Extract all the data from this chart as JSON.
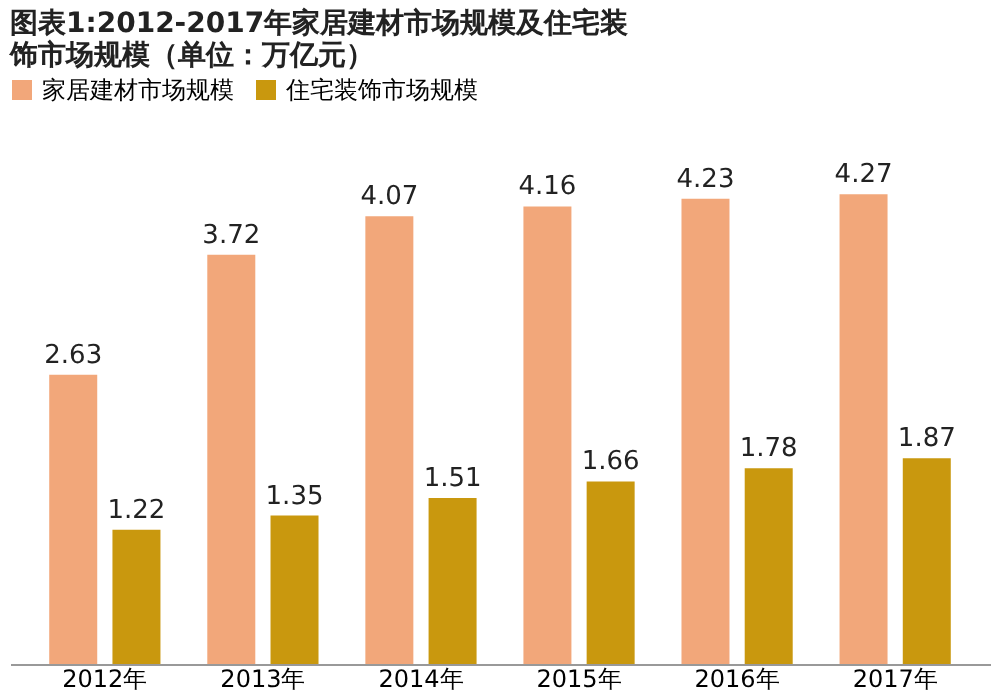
{
  "chart_data": {
    "type": "bar",
    "title": "图表1:2012-2017年家居建材市场规模及住宅装饰市场规模（单位：万亿元）",
    "categories": [
      "2012年",
      "2013年",
      "2014年",
      "2015年",
      "2016年",
      "2017年"
    ],
    "series": [
      {
        "name": "家居建材市场规模",
        "color": "#f2a77a",
        "values": [
          2.63,
          3.72,
          4.07,
          4.16,
          4.23,
          4.27
        ]
      },
      {
        "name": "住宅装饰市场规模",
        "color": "#c9980e",
        "values": [
          1.22,
          1.35,
          1.51,
          1.66,
          1.78,
          1.87
        ]
      }
    ],
    "data_labels": true,
    "legend": "top",
    "grid": false
  }
}
